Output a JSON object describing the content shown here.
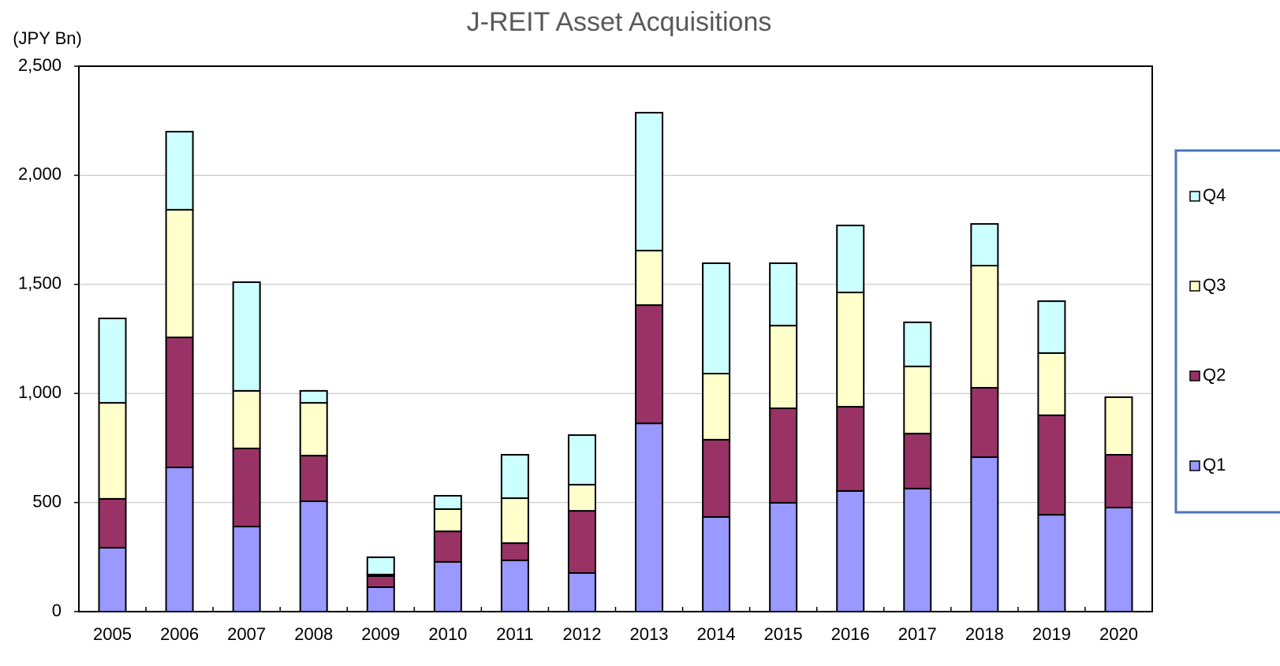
{
  "chart_data": {
    "type": "stacked_bar",
    "title": "J-REIT Asset Acquisitions",
    "y_label": "(JPY Bn)",
    "categories": [
      "2005",
      "2006",
      "2007",
      "2008",
      "2009",
      "2010",
      "2011",
      "2012",
      "2013",
      "2014",
      "2015",
      "2016",
      "2017",
      "2018",
      "2019",
      "2020"
    ],
    "series": [
      {
        "name": "Q1",
        "color": "#9999ff",
        "values": [
          293,
          661,
          390,
          506,
          112,
          228,
          235,
          177,
          863,
          434,
          499,
          553,
          564,
          708,
          444,
          477
        ]
      },
      {
        "name": "Q2",
        "color": "#993366",
        "values": [
          224,
          596,
          358,
          209,
          51,
          140,
          79,
          285,
          542,
          354,
          433,
          386,
          252,
          318,
          456,
          242
        ]
      },
      {
        "name": "Q3",
        "color": "#ffffcc",
        "values": [
          440,
          585,
          264,
          242,
          7,
          102,
          206,
          120,
          250,
          303,
          379,
          524,
          308,
          560,
          285,
          264
        ]
      },
      {
        "name": "Q4",
        "color": "#ccffff",
        "values": [
          387,
          358,
          498,
          55,
          79,
          61,
          199,
          227,
          632,
          506,
          286,
          307,
          202,
          191,
          238,
          null
        ]
      }
    ],
    "ylim": [
      0,
      2500
    ],
    "yticks": [
      0,
      500,
      {
        "value": 1000,
        "label": "1,000"
      },
      {
        "value": 1500,
        "label": "1,500"
      },
      {
        "value": 2000,
        "label": "2,000"
      },
      {
        "value": 2500,
        "label": "2,500"
      }
    ],
    "grid": true,
    "legend": "right"
  }
}
